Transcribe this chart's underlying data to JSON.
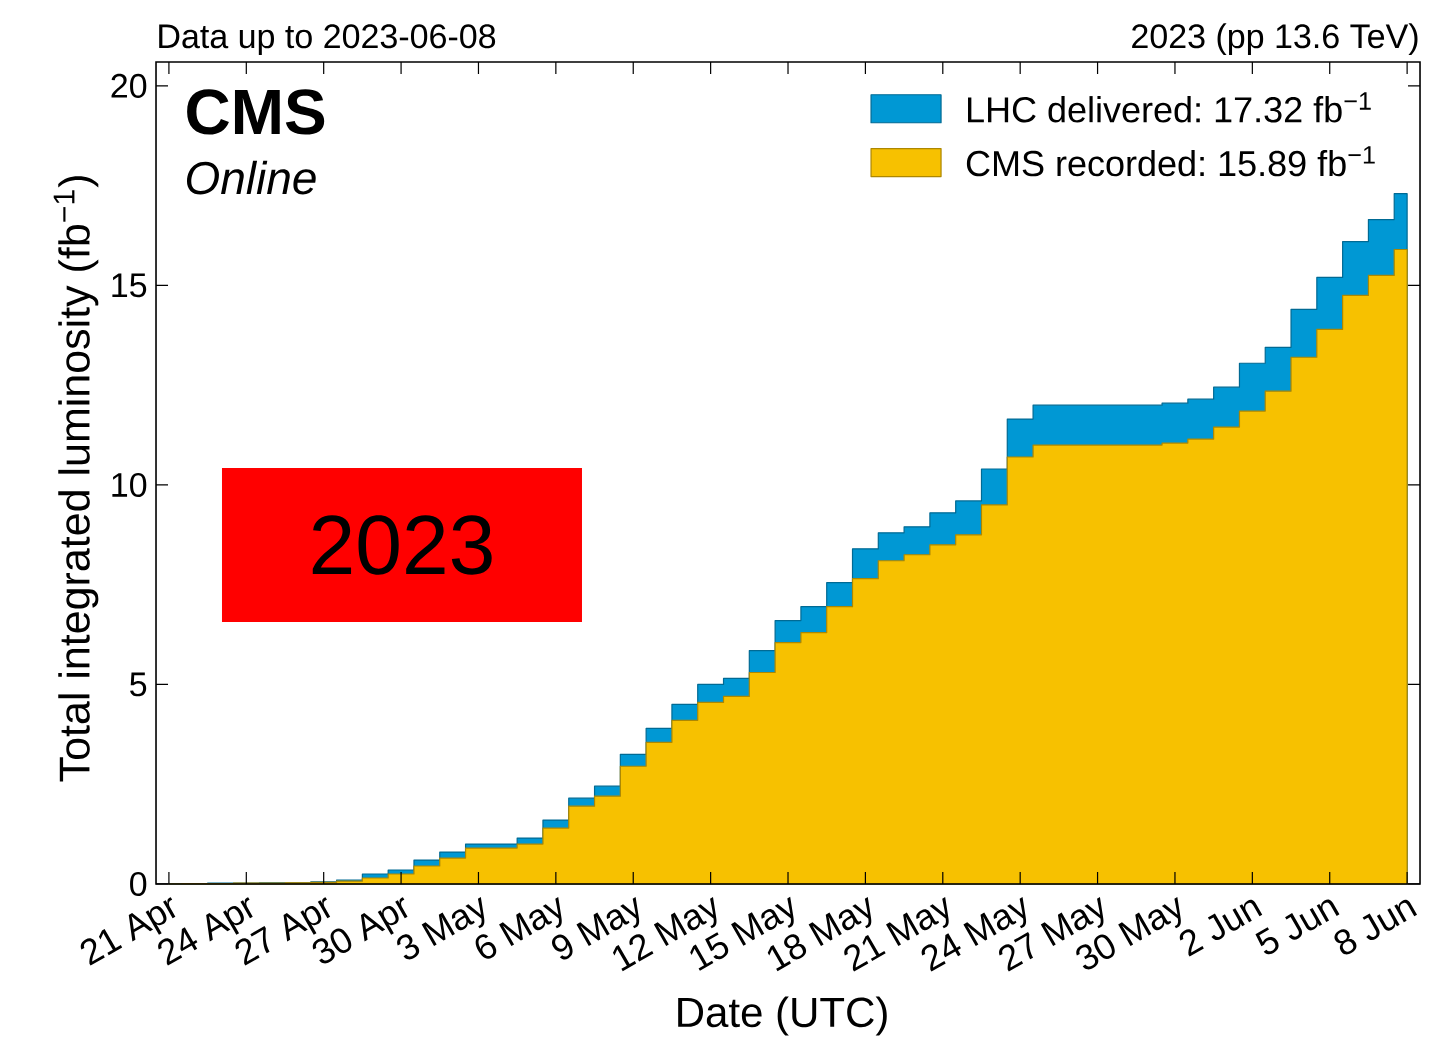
{
  "chart_data": {
    "type": "area",
    "title": "Data up to 2023-06-08",
    "subtitle": "2023 (pp 13.6 TeV)",
    "xlabel": "Date (UTC)",
    "ylabel": "Total integrated luminosity (fb$^{−1}$)",
    "annotations": [
      "CMS",
      "Online",
      "2023"
    ],
    "x": [
      "2023-04-21",
      "2023-04-22",
      "2023-04-23",
      "2023-04-24",
      "2023-04-25",
      "2023-04-26",
      "2023-04-27",
      "2023-04-28",
      "2023-04-29",
      "2023-04-30",
      "2023-05-01",
      "2023-05-02",
      "2023-05-03",
      "2023-05-04",
      "2023-05-05",
      "2023-05-06",
      "2023-05-07",
      "2023-05-08",
      "2023-05-09",
      "2023-05-10",
      "2023-05-11",
      "2023-05-12",
      "2023-05-13",
      "2023-05-14",
      "2023-05-15",
      "2023-05-16",
      "2023-05-17",
      "2023-05-18",
      "2023-05-19",
      "2023-05-20",
      "2023-05-21",
      "2023-05-22",
      "2023-05-23",
      "2023-05-24",
      "2023-05-25",
      "2023-05-26",
      "2023-05-27",
      "2023-05-28",
      "2023-05-29",
      "2023-05-30",
      "2023-05-31",
      "2023-06-01",
      "2023-06-02",
      "2023-06-03",
      "2023-06-04",
      "2023-06-05",
      "2023-06-06",
      "2023-06-07",
      "2023-06-08"
    ],
    "series": [
      {
        "name": "LHC delivered: 17.32 fb$^{−1}$",
        "color": "#0098d4",
        "values": [
          0,
          0.01,
          0.02,
          0.02,
          0.03,
          0.03,
          0.05,
          0.1,
          0.25,
          0.35,
          0.6,
          0.8,
          1.0,
          1.0,
          1.15,
          1.6,
          2.15,
          2.45,
          3.25,
          3.9,
          4.5,
          5.0,
          5.15,
          5.85,
          6.6,
          6.95,
          7.55,
          8.4,
          8.8,
          8.95,
          9.3,
          9.6,
          10.4,
          11.65,
          12.0,
          12.0,
          12.0,
          12.0,
          12.0,
          12.05,
          12.15,
          12.45,
          13.05,
          13.45,
          14.4,
          15.2,
          16.1,
          16.65,
          17.3
        ]
      },
      {
        "name": "CMS recorded: 15.89 fb$^{−1}$",
        "color": "#f7c100",
        "values": [
          0,
          0.01,
          0.01,
          0.02,
          0.02,
          0.03,
          0.04,
          0.07,
          0.15,
          0.25,
          0.45,
          0.65,
          0.9,
          0.9,
          1.0,
          1.4,
          1.95,
          2.2,
          2.95,
          3.55,
          4.1,
          4.55,
          4.7,
          5.3,
          6.05,
          6.3,
          6.95,
          7.65,
          8.1,
          8.25,
          8.5,
          8.75,
          9.5,
          10.7,
          11.0,
          11.0,
          11.0,
          11.0,
          11.0,
          11.05,
          11.15,
          11.45,
          11.85,
          12.35,
          13.2,
          13.9,
          14.75,
          15.25,
          15.9
        ]
      }
    ],
    "xlim": [
      "2023-04-20T12:00",
      "2023-06-08T12:00"
    ],
    "xticks": [
      {
        "value": "2023-04-21",
        "label": "21 Apr"
      },
      {
        "value": "2023-04-24",
        "label": "24 Apr"
      },
      {
        "value": "2023-04-27",
        "label": "27 Apr"
      },
      {
        "value": "2023-04-30",
        "label": "30 Apr"
      },
      {
        "value": "2023-05-03",
        "label": "3 May"
      },
      {
        "value": "2023-05-06",
        "label": "6 May"
      },
      {
        "value": "2023-05-09",
        "label": "9 May"
      },
      {
        "value": "2023-05-12",
        "label": "12 May"
      },
      {
        "value": "2023-05-15",
        "label": "15 May"
      },
      {
        "value": "2023-05-18",
        "label": "18 May"
      },
      {
        "value": "2023-05-21",
        "label": "21 May"
      },
      {
        "value": "2023-05-24",
        "label": "24 May"
      },
      {
        "value": "2023-05-27",
        "label": "27 May"
      },
      {
        "value": "2023-05-30",
        "label": "30 May"
      },
      {
        "value": "2023-06-02",
        "label": "2 Jun"
      },
      {
        "value": "2023-06-05",
        "label": "5 Jun"
      },
      {
        "value": "2023-06-08",
        "label": "8 Jun"
      }
    ],
    "ylim": [
      0,
      20.6
    ],
    "yticks": [
      0,
      5,
      10,
      15,
      20
    ],
    "legend": "top right"
  }
}
